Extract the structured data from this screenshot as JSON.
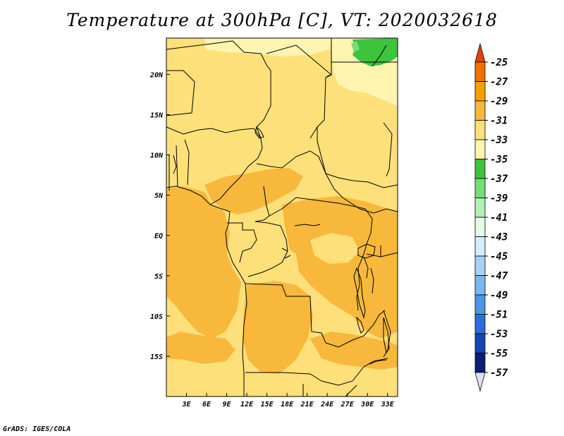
{
  "title": "Temperature at 300hPa [C], VT: 2020032618",
  "credit": "GrADS: IGES/COLA",
  "map": {
    "lon_range": [
      0,
      34.5
    ],
    "lat_range": [
      -20,
      24.5
    ],
    "x_ticks": [
      {
        "value": 3,
        "label": "3E"
      },
      {
        "value": 6,
        "label": "6E"
      },
      {
        "value": 9,
        "label": "9E"
      },
      {
        "value": 12,
        "label": "12E"
      },
      {
        "value": 15,
        "label": "15E"
      },
      {
        "value": 18,
        "label": "18E"
      },
      {
        "value": 21,
        "label": "21E"
      },
      {
        "value": 24,
        "label": "24E"
      },
      {
        "value": 27,
        "label": "27E"
      },
      {
        "value": 30,
        "label": "30E"
      },
      {
        "value": 33,
        "label": "33E"
      }
    ],
    "y_ticks": [
      {
        "value": 20,
        "label": "20N"
      },
      {
        "value": 15,
        "label": "15N"
      },
      {
        "value": 10,
        "label": "10N"
      },
      {
        "value": 5,
        "label": "5N"
      },
      {
        "value": 0,
        "label": "EQ"
      },
      {
        "value": -5,
        "label": "5S"
      },
      {
        "value": -10,
        "label": "10S"
      },
      {
        "value": -15,
        "label": "15S"
      }
    ]
  },
  "colorbar": {
    "levels": [
      {
        "label": "-25",
        "color": "#e04e00"
      },
      {
        "label": "-27",
        "color": "#f07000"
      },
      {
        "label": "-29",
        "color": "#f6a000"
      },
      {
        "label": "-31",
        "color": "#f8b83c"
      },
      {
        "label": "-33",
        "color": "#fde07a"
      },
      {
        "label": "-35",
        "color": "#fff4b0"
      },
      {
        "label": "-37",
        "color": "#3cc43c"
      },
      {
        "label": "-39",
        "color": "#78dc78"
      },
      {
        "label": "-41",
        "color": "#b4f0b4"
      },
      {
        "label": "-43",
        "color": "#e6fae6"
      },
      {
        "label": "-45",
        "color": "#d6ecfb"
      },
      {
        "label": "-47",
        "color": "#a6d2f6"
      },
      {
        "label": "-49",
        "color": "#7ab8f0"
      },
      {
        "label": "-51",
        "color": "#4c96e6"
      },
      {
        "label": "-53",
        "color": "#2c6edc"
      },
      {
        "label": "-55",
        "color": "#1446b4"
      },
      {
        "label": "-57",
        "color": "#0c1c78"
      }
    ],
    "top_cap_color": "#e84000",
    "bottom_cap_color": "#e0e0f4"
  }
}
